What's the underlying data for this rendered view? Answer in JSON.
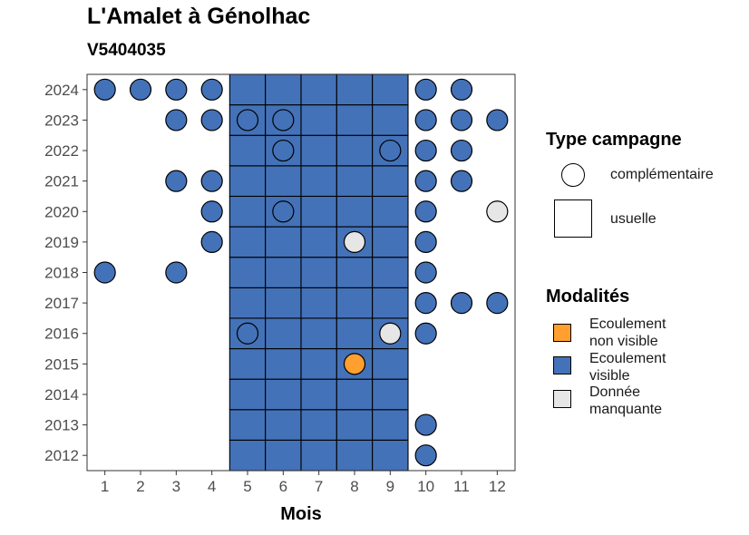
{
  "title": "L'Amalet à Génolhac",
  "subtitle": "V5404035",
  "legend": {
    "type_title": "Type campagne",
    "type_items": [
      {
        "key": "complementaire",
        "label": "complémentaire",
        "shape": "circle"
      },
      {
        "key": "usuelle",
        "label": "usuelle",
        "shape": "square"
      }
    ],
    "mod_title": "Modalités",
    "mod_items": [
      {
        "key": "non_visible",
        "line1": "Ecoulement",
        "line2": "non visible",
        "color": "#FF9F2F"
      },
      {
        "key": "visible",
        "line1": "Ecoulement",
        "line2": "visible",
        "color": "#4472B8"
      },
      {
        "key": "manquante",
        "line1": "Donnée",
        "line2": "manquante",
        "color": "#E6E6E6"
      }
    ]
  },
  "chart_data": {
    "type": "tile",
    "title": "L'Amalet à Génolhac",
    "subtitle": "V5404035",
    "xlabel": "Mois",
    "ylabel": "",
    "x_ticks": [
      1,
      2,
      3,
      4,
      5,
      6,
      7,
      8,
      9,
      10,
      11,
      12
    ],
    "y_ticks": [
      2012,
      2013,
      2014,
      2015,
      2016,
      2017,
      2018,
      2019,
      2020,
      2021,
      2022,
      2023,
      2024
    ],
    "xlim": [
      0.5,
      12.5
    ],
    "ylim": [
      2011.5,
      2024.5
    ],
    "colors": {
      "non_visible": "#FF9F2F",
      "visible": "#4472B8",
      "manquante": "#E6E6E6"
    },
    "usuelle": {
      "months": [
        5,
        6,
        7,
        8,
        9
      ],
      "years": [
        2012,
        2013,
        2014,
        2015,
        2016,
        2017,
        2018,
        2019,
        2020,
        2021,
        2022,
        2023,
        2024
      ],
      "modalite": "visible"
    },
    "complementaire": [
      {
        "year": 2024,
        "month": 1,
        "modalite": "visible"
      },
      {
        "year": 2024,
        "month": 2,
        "modalite": "visible"
      },
      {
        "year": 2024,
        "month": 3,
        "modalite": "visible"
      },
      {
        "year": 2024,
        "month": 4,
        "modalite": "visible"
      },
      {
        "year": 2024,
        "month": 10,
        "modalite": "visible"
      },
      {
        "year": 2024,
        "month": 11,
        "modalite": "visible"
      },
      {
        "year": 2023,
        "month": 3,
        "modalite": "visible"
      },
      {
        "year": 2023,
        "month": 4,
        "modalite": "visible"
      },
      {
        "year": 2023,
        "month": 5,
        "modalite": "visible"
      },
      {
        "year": 2023,
        "month": 6,
        "modalite": "visible"
      },
      {
        "year": 2023,
        "month": 10,
        "modalite": "visible"
      },
      {
        "year": 2023,
        "month": 11,
        "modalite": "visible"
      },
      {
        "year": 2023,
        "month": 12,
        "modalite": "visible"
      },
      {
        "year": 2022,
        "month": 6,
        "modalite": "visible"
      },
      {
        "year": 2022,
        "month": 9,
        "modalite": "visible"
      },
      {
        "year": 2022,
        "month": 10,
        "modalite": "visible"
      },
      {
        "year": 2022,
        "month": 11,
        "modalite": "visible"
      },
      {
        "year": 2021,
        "month": 3,
        "modalite": "visible"
      },
      {
        "year": 2021,
        "month": 4,
        "modalite": "visible"
      },
      {
        "year": 2021,
        "month": 10,
        "modalite": "visible"
      },
      {
        "year": 2021,
        "month": 11,
        "modalite": "visible"
      },
      {
        "year": 2020,
        "month": 4,
        "modalite": "visible"
      },
      {
        "year": 2020,
        "month": 6,
        "modalite": "visible"
      },
      {
        "year": 2020,
        "month": 10,
        "modalite": "visible"
      },
      {
        "year": 2020,
        "month": 12,
        "modalite": "manquante"
      },
      {
        "year": 2019,
        "month": 4,
        "modalite": "visible"
      },
      {
        "year": 2019,
        "month": 8,
        "modalite": "manquante"
      },
      {
        "year": 2019,
        "month": 10,
        "modalite": "visible"
      },
      {
        "year": 2018,
        "month": 1,
        "modalite": "visible"
      },
      {
        "year": 2018,
        "month": 3,
        "modalite": "visible"
      },
      {
        "year": 2018,
        "month": 10,
        "modalite": "visible"
      },
      {
        "year": 2017,
        "month": 10,
        "modalite": "visible"
      },
      {
        "year": 2017,
        "month": 11,
        "modalite": "visible"
      },
      {
        "year": 2017,
        "month": 12,
        "modalite": "visible"
      },
      {
        "year": 2016,
        "month": 5,
        "modalite": "visible"
      },
      {
        "year": 2016,
        "month": 9,
        "modalite": "manquante"
      },
      {
        "year": 2016,
        "month": 10,
        "modalite": "visible"
      },
      {
        "year": 2015,
        "month": 8,
        "modalite": "non_visible"
      },
      {
        "year": 2013,
        "month": 10,
        "modalite": "visible"
      },
      {
        "year": 2012,
        "month": 10,
        "modalite": "visible"
      }
    ]
  }
}
